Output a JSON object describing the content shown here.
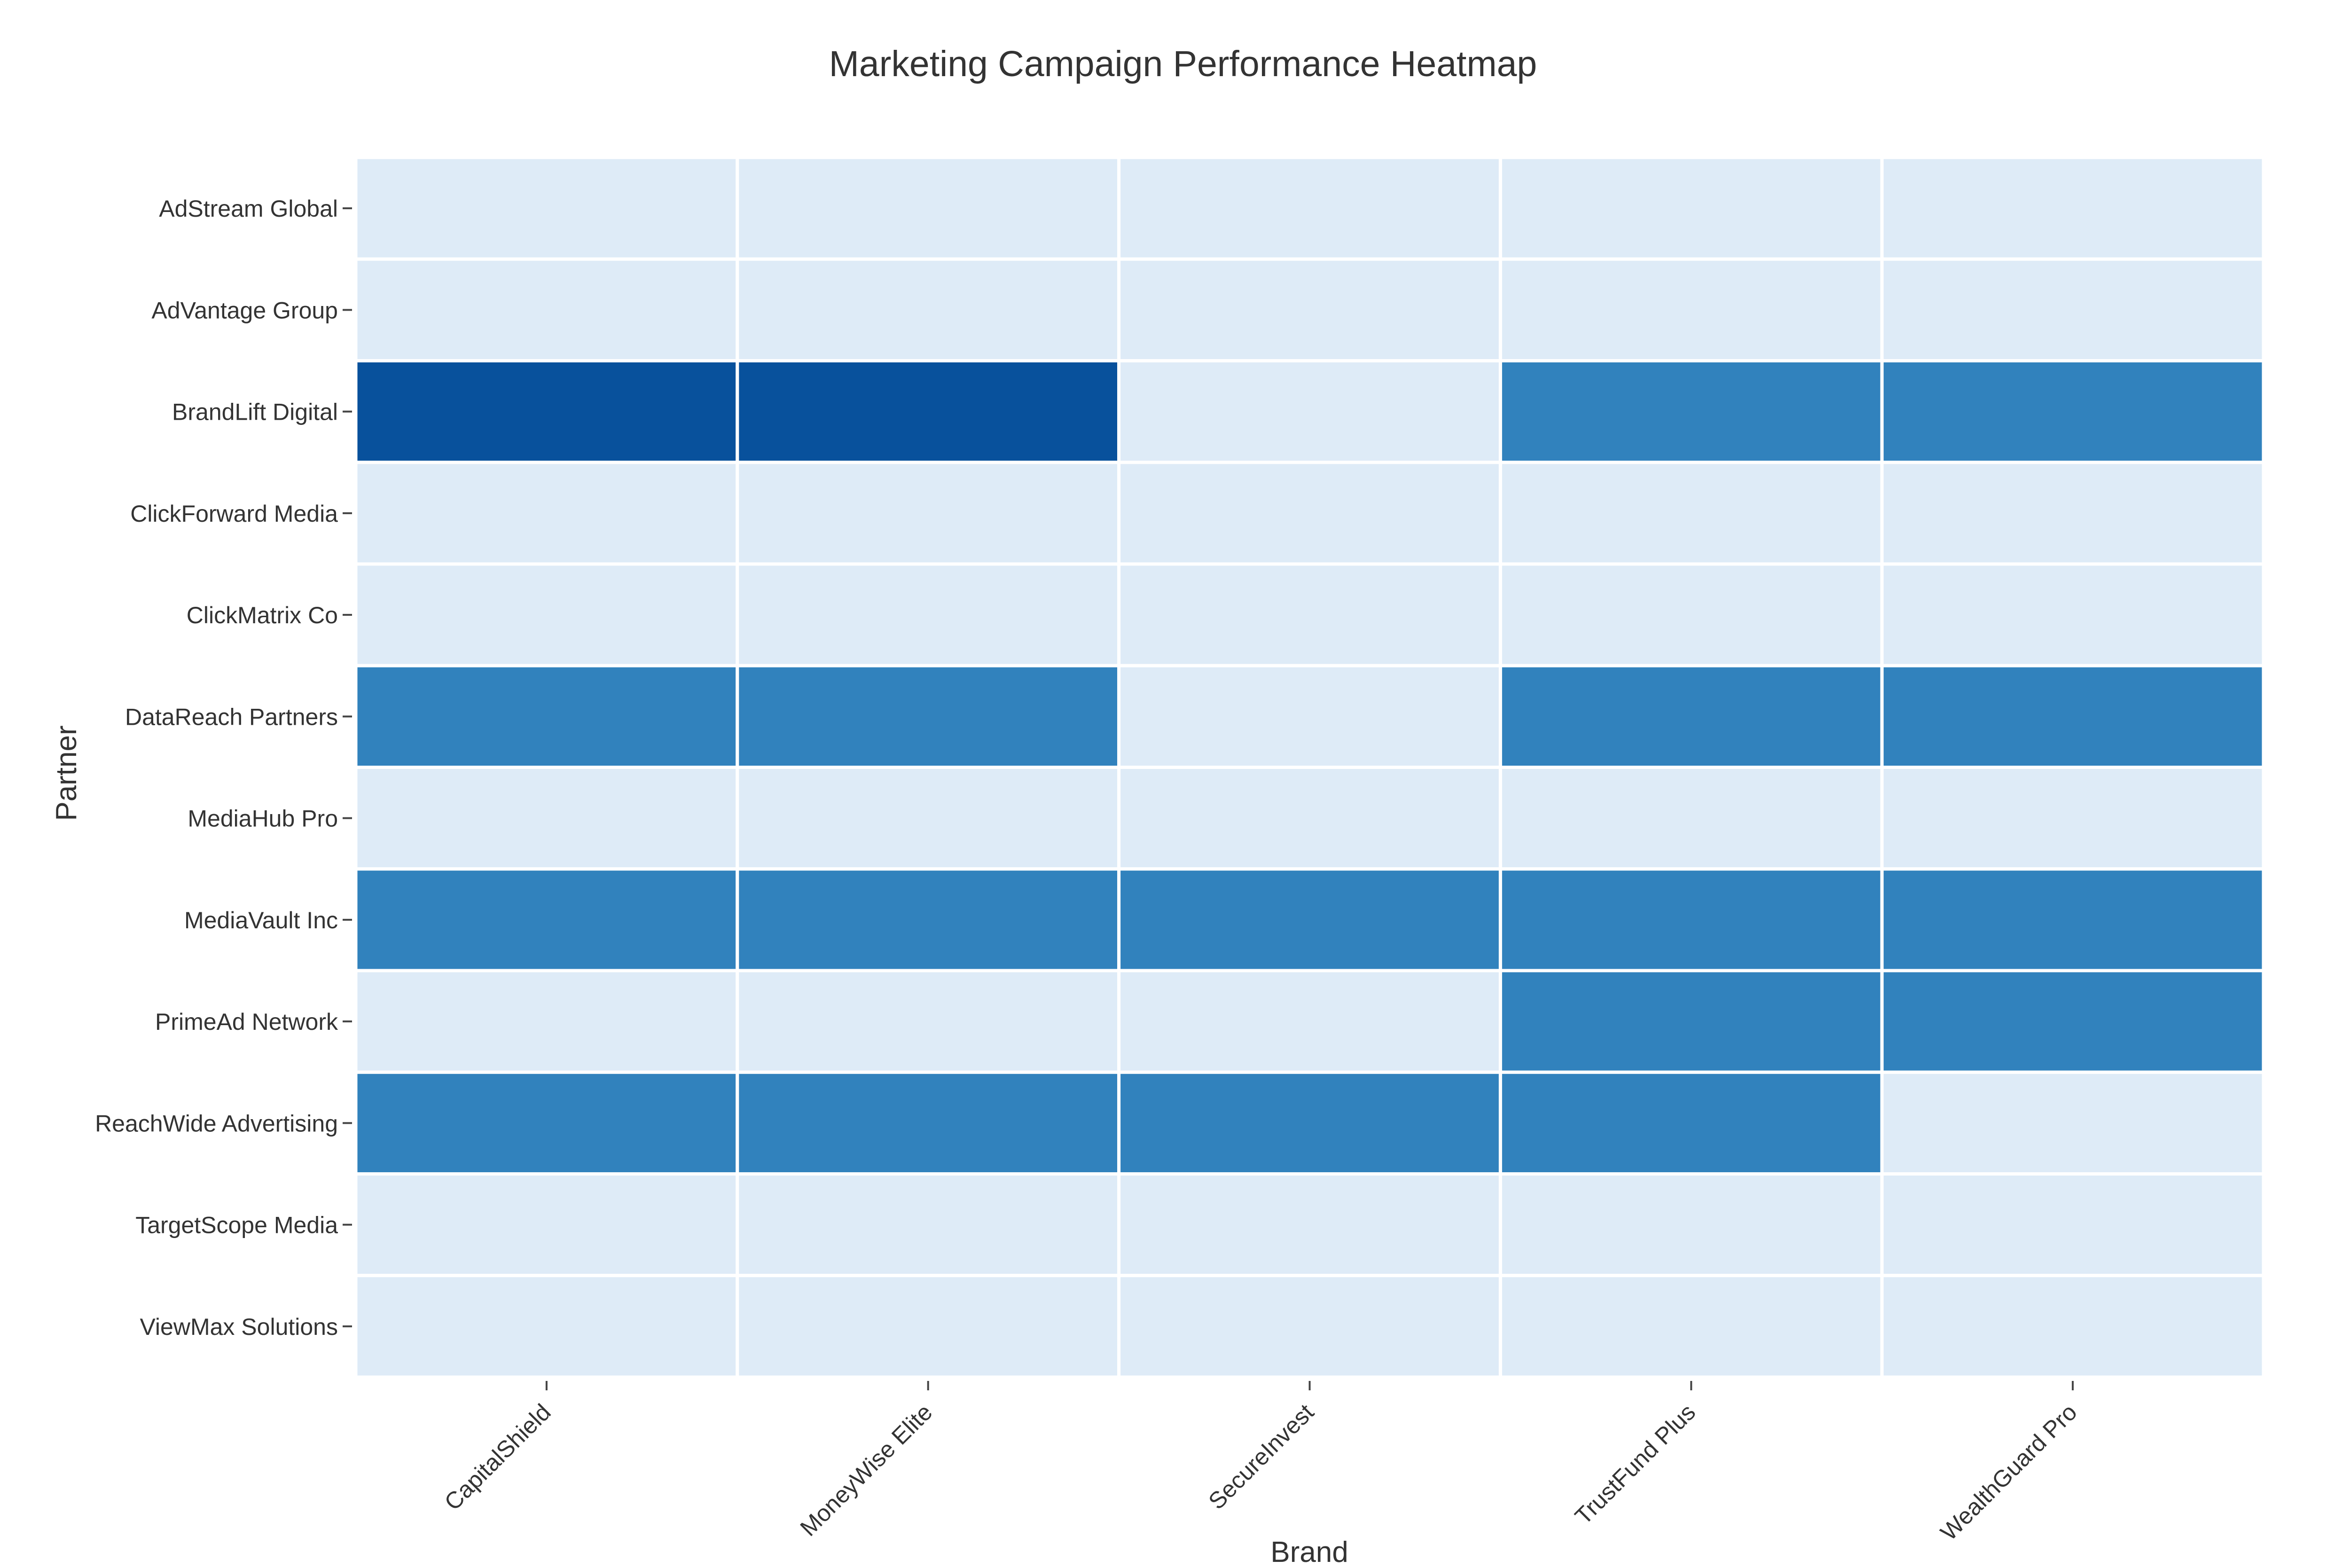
{
  "chart_data": {
    "type": "heatmap",
    "title": "Marketing Campaign Performance Heatmap",
    "xlabel": "Brand",
    "ylabel": "Partner",
    "x": [
      "CapitalShield",
      "MoneyWise Elite",
      "SecureInvest",
      "TrustFund Plus",
      "WealthGuard Pro"
    ],
    "y": [
      "AdStream Global",
      "AdVantage Group",
      "BrandLift Digital",
      "ClickForward Media",
      "ClickMatrix Co",
      "DataReach Partners",
      "MediaHub Pro",
      "MediaVault Inc",
      "PrimeAd Network",
      "ReachWide Advertising",
      "TargetScope Media",
      "ViewMax Solutions"
    ],
    "z": [
      [
        0,
        0,
        0,
        0,
        0
      ],
      [
        0,
        0,
        0,
        0,
        0
      ],
      [
        2,
        2,
        0,
        1,
        1
      ],
      [
        0,
        0,
        0,
        0,
        0
      ],
      [
        0,
        0,
        0,
        0,
        0
      ],
      [
        1,
        1,
        0,
        1,
        1
      ],
      [
        0,
        0,
        0,
        0,
        0
      ],
      [
        1,
        1,
        1,
        1,
        1
      ],
      [
        0,
        0,
        0,
        1,
        1
      ],
      [
        1,
        1,
        1,
        1,
        0
      ],
      [
        0,
        0,
        0,
        0,
        0
      ],
      [
        0,
        0,
        0,
        0,
        0
      ]
    ],
    "colorscale": [
      "#deebf7",
      "#3182bd",
      "#08519c"
    ],
    "grid": false,
    "legend": "none"
  }
}
